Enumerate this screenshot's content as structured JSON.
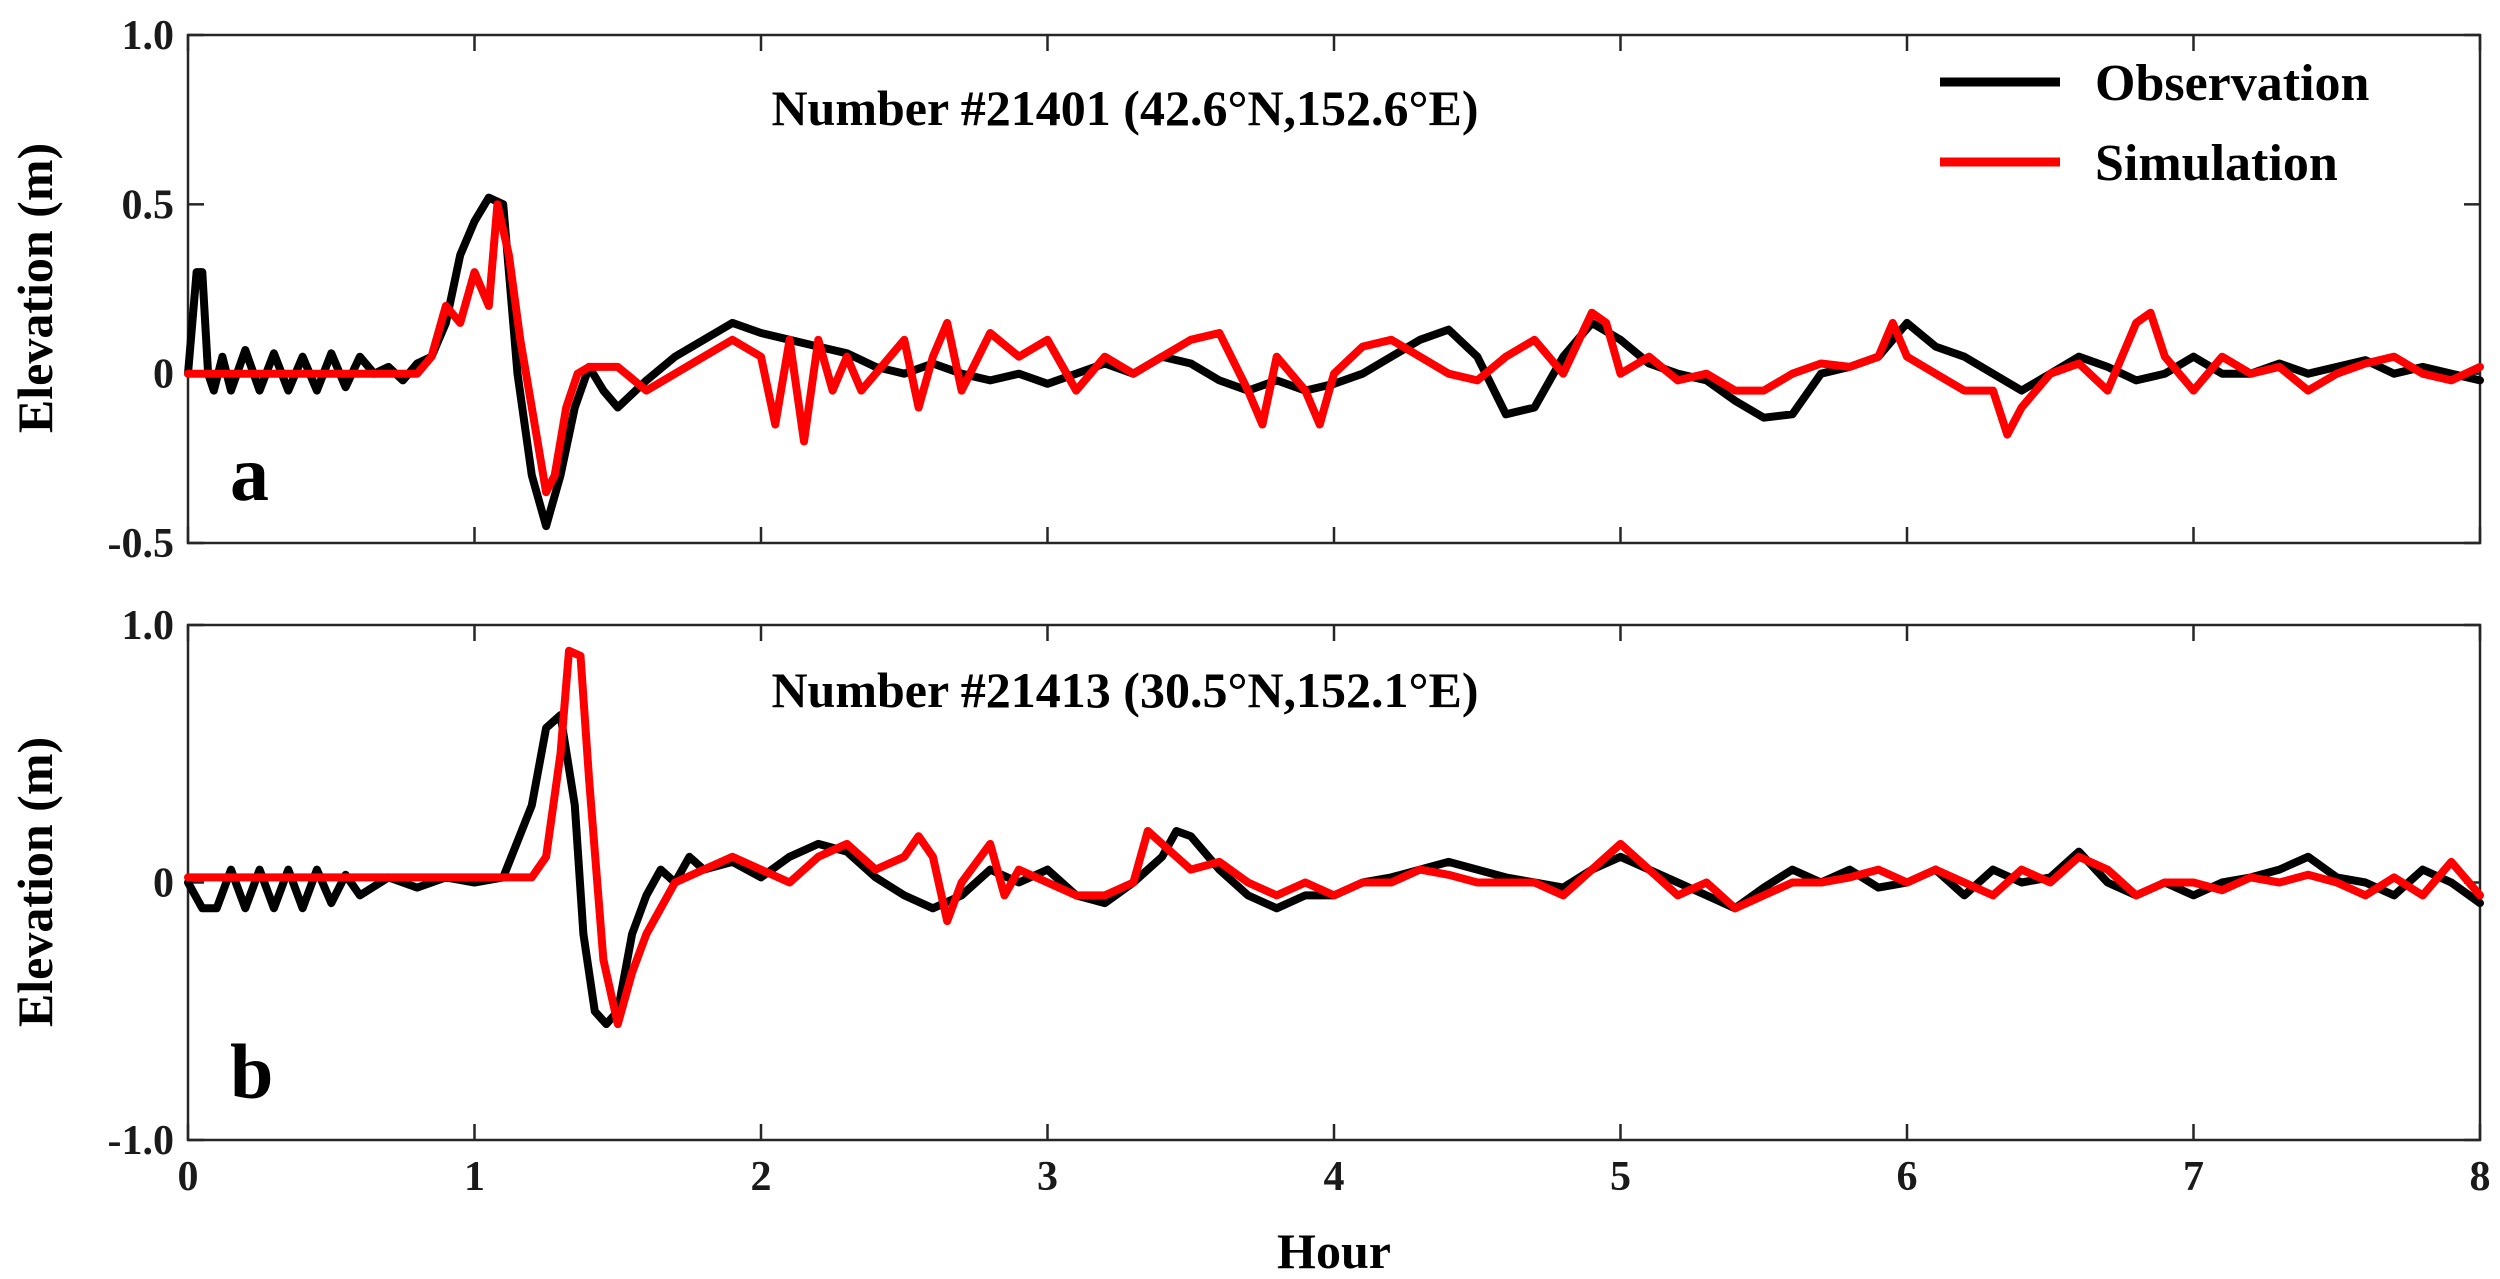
{
  "chart_data": [
    {
      "type": "line",
      "panel_label": "a",
      "title": "Number #21401 (42.6°N,152.6°E)",
      "xlabel": "",
      "ylabel": "Elevation (m)",
      "xlim": [
        0,
        8
      ],
      "ylim": [
        -0.5,
        1.0
      ],
      "xticks": [
        0,
        1,
        2,
        3,
        4,
        5,
        6,
        7,
        8
      ],
      "xtick_labels": [
        "",
        "",
        "",
        "",
        "",
        "",
        "",
        "",
        ""
      ],
      "yticks": [
        -0.5,
        0,
        0.5,
        1.0
      ],
      "ytick_labels": [
        "-0.5",
        "0",
        "0.5",
        "1.0"
      ],
      "legend": {
        "position": "top-right",
        "entries": [
          "Observation",
          "Simulation"
        ]
      },
      "series": [
        {
          "name": "Observation",
          "color": "#000000",
          "x": [
            0,
            0.03,
            0.05,
            0.07,
            0.09,
            0.12,
            0.15,
            0.2,
            0.25,
            0.3,
            0.35,
            0.4,
            0.45,
            0.5,
            0.55,
            0.6,
            0.65,
            0.7,
            0.75,
            0.8,
            0.85,
            0.9,
            0.95,
            1.0,
            1.05,
            1.1,
            1.15,
            1.2,
            1.25,
            1.3,
            1.35,
            1.4,
            1.45,
            1.5,
            1.6,
            1.7,
            1.8,
            1.9,
            2.0,
            2.1,
            2.2,
            2.3,
            2.4,
            2.5,
            2.6,
            2.7,
            2.8,
            2.9,
            3.0,
            3.1,
            3.2,
            3.3,
            3.4,
            3.5,
            3.6,
            3.7,
            3.8,
            3.9,
            4.0,
            4.1,
            4.2,
            4.3,
            4.4,
            4.5,
            4.6,
            4.7,
            4.8,
            4.9,
            5.0,
            5.1,
            5.2,
            5.3,
            5.4,
            5.5,
            5.6,
            5.7,
            5.8,
            5.9,
            6.0,
            6.1,
            6.2,
            6.3,
            6.4,
            6.5,
            6.6,
            6.7,
            6.8,
            6.9,
            7.0,
            7.1,
            7.2,
            7.3,
            7.4,
            7.5,
            7.6,
            7.7,
            7.8,
            7.9,
            8.0
          ],
          "y": [
            0,
            0.3,
            0.3,
            0.0,
            -0.05,
            0.05,
            -0.05,
            0.07,
            -0.05,
            0.06,
            -0.05,
            0.05,
            -0.05,
            0.06,
            -0.04,
            0.05,
            0.0,
            0.02,
            -0.02,
            0.03,
            0.05,
            0.15,
            0.35,
            0.45,
            0.52,
            0.5,
            0.0,
            -0.3,
            -0.45,
            -0.3,
            -0.1,
            0.02,
            -0.05,
            -0.1,
            -0.02,
            0.05,
            0.1,
            0.15,
            0.12,
            0.1,
            0.08,
            0.06,
            0.02,
            0.0,
            0.03,
            0.0,
            -0.02,
            0.0,
            -0.03,
            0.0,
            0.03,
            0.0,
            0.05,
            0.03,
            -0.02,
            -0.05,
            -0.02,
            -0.05,
            -0.03,
            0.0,
            0.05,
            0.1,
            0.13,
            0.05,
            -0.12,
            -0.1,
            0.05,
            0.15,
            0.1,
            0.03,
            0.0,
            -0.02,
            -0.08,
            -0.13,
            -0.12,
            0.0,
            0.02,
            0.05,
            0.15,
            0.08,
            0.05,
            0.0,
            -0.05,
            0.0,
            0.05,
            0.02,
            -0.02,
            0.0,
            0.05,
            0.0,
            0.0,
            0.03,
            0.0,
            0.02,
            0.04,
            0.0,
            0.02,
            0.0,
            -0.02
          ]
        },
        {
          "name": "Simulation",
          "color": "#ff0000",
          "x": [
            0,
            0.2,
            0.4,
            0.6,
            0.8,
            0.85,
            0.9,
            0.95,
            1.0,
            1.05,
            1.08,
            1.12,
            1.16,
            1.2,
            1.25,
            1.28,
            1.32,
            1.36,
            1.4,
            1.5,
            1.6,
            1.7,
            1.8,
            1.9,
            2.0,
            2.05,
            2.1,
            2.15,
            2.2,
            2.25,
            2.3,
            2.35,
            2.4,
            2.5,
            2.55,
            2.6,
            2.65,
            2.7,
            2.8,
            2.9,
            3.0,
            3.1,
            3.2,
            3.3,
            3.4,
            3.5,
            3.6,
            3.7,
            3.75,
            3.8,
            3.9,
            3.95,
            4.0,
            4.1,
            4.2,
            4.3,
            4.4,
            4.5,
            4.6,
            4.7,
            4.8,
            4.9,
            4.95,
            5.0,
            5.1,
            5.2,
            5.3,
            5.4,
            5.5,
            5.6,
            5.7,
            5.8,
            5.9,
            5.95,
            6.0,
            6.1,
            6.2,
            6.3,
            6.35,
            6.4,
            6.5,
            6.6,
            6.7,
            6.8,
            6.85,
            6.9,
            7.0,
            7.1,
            7.2,
            7.3,
            7.4,
            7.5,
            7.6,
            7.7,
            7.8,
            7.9,
            8.0
          ],
          "y": [
            0,
            0,
            0,
            0,
            0.0,
            0.05,
            0.2,
            0.15,
            0.3,
            0.2,
            0.5,
            0.35,
            0.1,
            -0.1,
            -0.35,
            -0.3,
            -0.1,
            0.0,
            0.02,
            0.02,
            -0.05,
            0.0,
            0.05,
            0.1,
            0.05,
            -0.15,
            0.1,
            -0.2,
            0.1,
            -0.05,
            0.05,
            -0.05,
            0.0,
            0.1,
            -0.1,
            0.05,
            0.15,
            -0.05,
            0.12,
            0.05,
            0.1,
            -0.05,
            0.05,
            0.0,
            0.05,
            0.1,
            0.12,
            -0.05,
            -0.15,
            0.05,
            -0.05,
            -0.15,
            0.0,
            0.08,
            0.1,
            0.05,
            0.0,
            -0.02,
            0.05,
            0.1,
            0.0,
            0.18,
            0.15,
            0.0,
            0.05,
            -0.02,
            0.0,
            -0.05,
            -0.05,
            0.0,
            0.03,
            0.02,
            0.05,
            0.15,
            0.05,
            0.0,
            -0.05,
            -0.05,
            -0.18,
            -0.1,
            0.0,
            0.03,
            -0.05,
            0.15,
            0.18,
            0.05,
            -0.05,
            0.05,
            0.0,
            0.02,
            -0.05,
            0.0,
            0.03,
            0.05,
            0.0,
            -0.02,
            0.02
          ]
        }
      ]
    },
    {
      "type": "line",
      "panel_label": "b",
      "title": "Number #21413 (30.5°N,152.1°E)",
      "xlabel": "Hour",
      "ylabel": "Elevation (m)",
      "xlim": [
        0,
        8
      ],
      "ylim": [
        -1.0,
        1.0
      ],
      "xticks": [
        0,
        1,
        2,
        3,
        4,
        5,
        6,
        7,
        8
      ],
      "xtick_labels": [
        "0",
        "1",
        "2",
        "3",
        "4",
        "5",
        "6",
        "7",
        "8"
      ],
      "yticks": [
        -1.0,
        0,
        1.0
      ],
      "ytick_labels": [
        "-1.0",
        "0",
        "1.0"
      ],
      "series": [
        {
          "name": "Observation",
          "color": "#000000",
          "x": [
            0,
            0.05,
            0.1,
            0.15,
            0.2,
            0.25,
            0.3,
            0.35,
            0.4,
            0.45,
            0.5,
            0.55,
            0.6,
            0.7,
            0.8,
            0.9,
            1.0,
            1.1,
            1.2,
            1.25,
            1.3,
            1.35,
            1.38,
            1.42,
            1.46,
            1.5,
            1.55,
            1.6,
            1.65,
            1.7,
            1.75,
            1.8,
            1.9,
            2.0,
            2.1,
            2.2,
            2.3,
            2.4,
            2.5,
            2.6,
            2.7,
            2.8,
            2.9,
            3.0,
            3.1,
            3.2,
            3.3,
            3.4,
            3.45,
            3.5,
            3.6,
            3.7,
            3.8,
            3.9,
            4.0,
            4.1,
            4.2,
            4.3,
            4.4,
            4.5,
            4.6,
            4.7,
            4.8,
            4.9,
            5.0,
            5.1,
            5.2,
            5.3,
            5.4,
            5.5,
            5.6,
            5.7,
            5.8,
            5.9,
            6.0,
            6.1,
            6.2,
            6.3,
            6.4,
            6.5,
            6.6,
            6.7,
            6.8,
            6.9,
            7.0,
            7.1,
            7.2,
            7.3,
            7.4,
            7.5,
            7.6,
            7.7,
            7.8,
            7.9,
            8.0
          ],
          "y": [
            0,
            -0.1,
            -0.1,
            0.05,
            -0.1,
            0.05,
            -0.1,
            0.05,
            -0.1,
            0.05,
            -0.08,
            0.03,
            -0.05,
            0.02,
            -0.02,
            0.02,
            0.0,
            0.02,
            0.3,
            0.6,
            0.65,
            0.3,
            -0.2,
            -0.5,
            -0.55,
            -0.5,
            -0.2,
            -0.05,
            0.05,
            0.0,
            0.1,
            0.05,
            0.08,
            0.02,
            0.1,
            0.15,
            0.12,
            0.02,
            -0.05,
            -0.1,
            -0.05,
            0.05,
            0.0,
            0.05,
            -0.05,
            -0.08,
            0.0,
            0.1,
            0.2,
            0.18,
            0.05,
            -0.05,
            -0.1,
            -0.05,
            -0.05,
            0.0,
            0.02,
            0.05,
            0.08,
            0.05,
            0.02,
            0.0,
            -0.02,
            0.05,
            0.1,
            0.05,
            0.0,
            -0.05,
            -0.1,
            -0.02,
            0.05,
            0.0,
            0.05,
            -0.02,
            0.0,
            0.05,
            -0.05,
            0.05,
            0.0,
            0.02,
            0.12,
            0.0,
            -0.05,
            0.0,
            -0.05,
            0.0,
            0.02,
            0.05,
            0.1,
            0.02,
            0.0,
            -0.05,
            0.05,
            0.0,
            -0.08
          ]
        },
        {
          "name": "Simulation",
          "color": "#ff0000",
          "x": [
            0,
            0.2,
            0.4,
            0.6,
            0.8,
            1.0,
            1.1,
            1.2,
            1.25,
            1.3,
            1.33,
            1.37,
            1.4,
            1.45,
            1.5,
            1.55,
            1.6,
            1.7,
            1.8,
            1.9,
            2.0,
            2.1,
            2.2,
            2.3,
            2.4,
            2.5,
            2.55,
            2.6,
            2.65,
            2.7,
            2.8,
            2.85,
            2.9,
            3.0,
            3.1,
            3.2,
            3.3,
            3.35,
            3.4,
            3.5,
            3.6,
            3.7,
            3.8,
            3.9,
            4.0,
            4.1,
            4.2,
            4.3,
            4.4,
            4.5,
            4.6,
            4.7,
            4.8,
            4.9,
            5.0,
            5.1,
            5.2,
            5.3,
            5.4,
            5.5,
            5.6,
            5.7,
            5.8,
            5.9,
            6.0,
            6.1,
            6.2,
            6.3,
            6.4,
            6.5,
            6.6,
            6.7,
            6.8,
            6.9,
            7.0,
            7.1,
            7.2,
            7.3,
            7.4,
            7.5,
            7.6,
            7.7,
            7.8,
            7.9,
            8.0
          ],
          "y": [
            0.02,
            0.02,
            0.02,
            0.02,
            0.02,
            0.02,
            0.02,
            0.02,
            0.1,
            0.5,
            0.9,
            0.88,
            0.4,
            -0.3,
            -0.55,
            -0.35,
            -0.2,
            0.0,
            0.05,
            0.1,
            0.05,
            0.0,
            0.1,
            0.15,
            0.05,
            0.1,
            0.18,
            0.1,
            -0.15,
            0.0,
            0.15,
            -0.05,
            0.05,
            0.0,
            -0.05,
            -0.05,
            0.0,
            0.2,
            0.15,
            0.05,
            0.08,
            0.0,
            -0.05,
            0.0,
            -0.05,
            0.0,
            0.0,
            0.05,
            0.03,
            0.0,
            0.0,
            0.0,
            -0.05,
            0.05,
            0.15,
            0.05,
            -0.05,
            0.0,
            -0.1,
            -0.05,
            0.0,
            0.0,
            0.02,
            0.05,
            0.0,
            0.05,
            0.0,
            -0.05,
            0.05,
            0.0,
            0.1,
            0.05,
            -0.05,
            0.0,
            0.0,
            -0.03,
            0.02,
            0.0,
            0.03,
            0.0,
            -0.05,
            0.02,
            -0.05,
            0.08,
            -0.05
          ]
        }
      ]
    }
  ]
}
